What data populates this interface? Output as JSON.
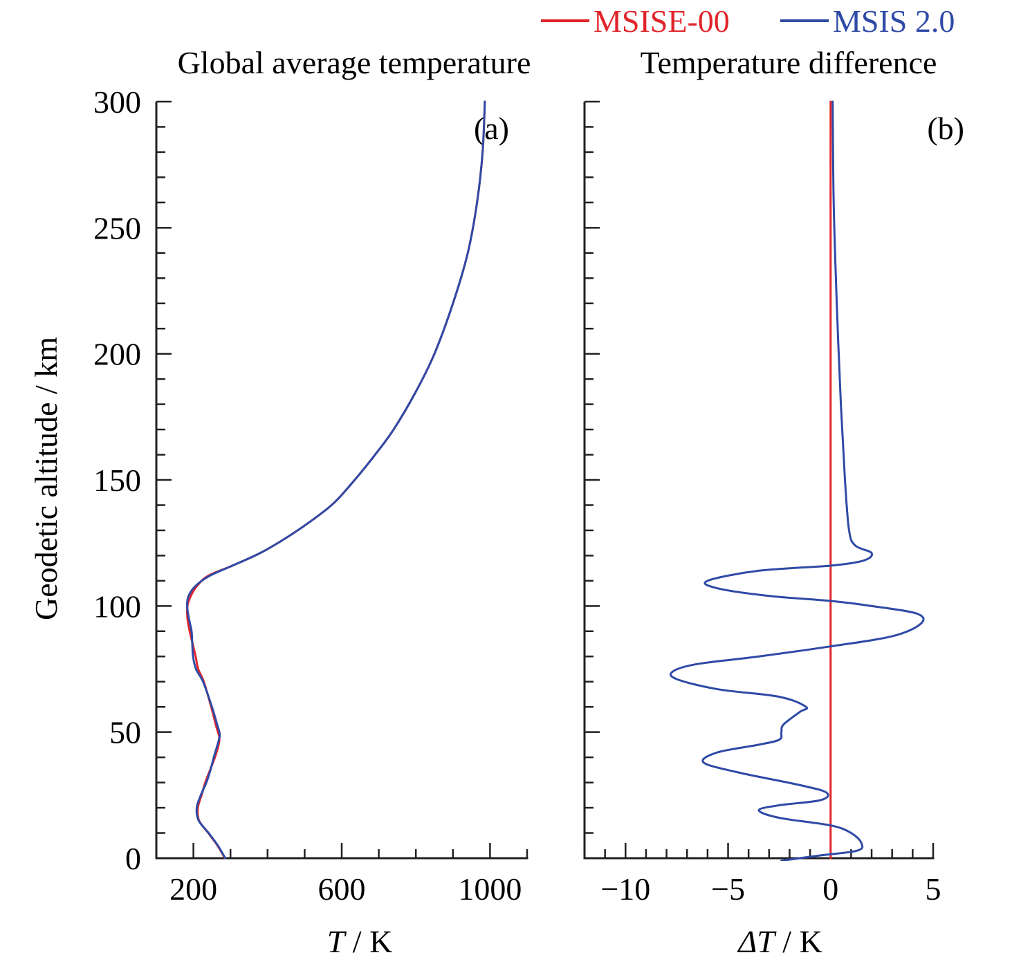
{
  "legend": {
    "placement": "top-right",
    "items": [
      {
        "label": "MSISE-00",
        "color": "#e0252b"
      },
      {
        "label": "MSIS 2.0",
        "color": "#2f4aa6"
      }
    ]
  },
  "ylabel": "Geodetic altitude / km",
  "chart_data": [
    {
      "type": "line",
      "title": "Global average temperature",
      "panel_label": "(a)",
      "xlabel": {
        "var": "T",
        "rest": " / K"
      },
      "ylabel": "Geodetic altitude / km",
      "xlim": [
        100,
        1100
      ],
      "ylim": [
        0,
        300
      ],
      "xticks": [
        200,
        600,
        1000
      ],
      "xtick_labels": [
        "200",
        "600",
        "1000"
      ],
      "yticks": [
        0,
        50,
        100,
        150,
        200,
        250,
        300
      ],
      "ytick_labels": [
        "0",
        "50",
        "100",
        "150",
        "200",
        "250",
        "300"
      ],
      "grid": false,
      "series": [
        {
          "name": "MSISE-00",
          "color": "#e0252b",
          "points": [
            [
              285,
              0
            ],
            [
              265,
              5
            ],
            [
              240,
              10
            ],
            [
              215,
              15
            ],
            [
              212,
              20
            ],
            [
              222,
              25
            ],
            [
              232,
              30
            ],
            [
              245,
              35
            ],
            [
              258,
              40
            ],
            [
              268,
              45
            ],
            [
              270,
              48
            ],
            [
              262,
              52
            ],
            [
              248,
              60
            ],
            [
              228,
              70
            ],
            [
              213,
              75
            ],
            [
              206,
              80
            ],
            [
              198,
              85
            ],
            [
              190,
              90
            ],
            [
              184,
              95
            ],
            [
              184,
              100
            ],
            [
              193,
              104
            ],
            [
              210,
              108
            ],
            [
              240,
              112
            ],
            [
              305,
              116
            ],
            [
              380,
              121
            ],
            [
              450,
              127
            ],
            [
              520,
              134
            ],
            [
              580,
              141
            ],
            [
              635,
              150
            ],
            [
              690,
              160
            ],
            [
              740,
              170
            ],
            [
              800,
              185
            ],
            [
              850,
              200
            ],
            [
              900,
              220
            ],
            [
              940,
              240
            ],
            [
              965,
              260
            ],
            [
              980,
              280
            ],
            [
              986,
              300
            ]
          ]
        },
        {
          "name": "MSIS 2.0",
          "color": "#2f4aa6",
          "points": [
            [
              286,
              0
            ],
            [
              266,
              5
            ],
            [
              241,
              10
            ],
            [
              214,
              15
            ],
            [
              209,
              20
            ],
            [
              220,
              25
            ],
            [
              235,
              30
            ],
            [
              246,
              35
            ],
            [
              255,
              40
            ],
            [
              265,
              45
            ],
            [
              271,
              49
            ],
            [
              264,
              53
            ],
            [
              250,
              60
            ],
            [
              226,
              70
            ],
            [
              207,
              75
            ],
            [
              199,
              80
            ],
            [
              197,
              85
            ],
            [
              195,
              90
            ],
            [
              188,
              95
            ],
            [
              183,
              100
            ],
            [
              187,
              104
            ],
            [
              206,
              108
            ],
            [
              244,
              112
            ],
            [
              305,
              116
            ],
            [
              380,
              121
            ],
            [
              450,
              127
            ],
            [
              520,
              134
            ],
            [
              580,
              141
            ],
            [
              635,
              150
            ],
            [
              690,
              160
            ],
            [
              740,
              170
            ],
            [
              800,
              185
            ],
            [
              850,
              200
            ],
            [
              900,
              220
            ],
            [
              940,
              240
            ],
            [
              965,
              260
            ],
            [
              980,
              280
            ],
            [
              986,
              300
            ]
          ]
        }
      ]
    },
    {
      "type": "line",
      "title": "Temperature difference",
      "panel_label": "(b)",
      "xlabel": {
        "var": "ΔT",
        "rest": " / K"
      },
      "ylabel": "Geodetic altitude / km",
      "xlim": [
        -12,
        5
      ],
      "ylim": [
        0,
        300
      ],
      "xticks": [
        -10,
        -5,
        0,
        5
      ],
      "xtick_labels": [
        "−10",
        "−5",
        "0",
        "5"
      ],
      "yticks": [
        0,
        50,
        100,
        150,
        200,
        250,
        300
      ],
      "ytick_labels": [
        "",
        "",
        "",
        "",
        "",
        "",
        ""
      ],
      "grid": false,
      "series": [
        {
          "name": "MSISE-00",
          "color": "#e0252b",
          "points": [
            [
              0,
              0
            ],
            [
              0,
              300
            ]
          ]
        },
        {
          "name": "MSIS 2.0",
          "color": "#2f4aa6",
          "points": [
            [
              -2.4,
              -1
            ],
            [
              -0.6,
              1
            ],
            [
              1.3,
              3
            ],
            [
              1.5,
              6
            ],
            [
              1.0,
              10
            ],
            [
              0,
              13
            ],
            [
              -2.5,
              16
            ],
            [
              -3.5,
              19
            ],
            [
              -2.5,
              21
            ],
            [
              -0.5,
              23
            ],
            [
              -0.2,
              26
            ],
            [
              -1.5,
              29
            ],
            [
              -4.5,
              34
            ],
            [
              -6.2,
              38
            ],
            [
              -5.5,
              42
            ],
            [
              -3.5,
              45
            ],
            [
              -2.5,
              47
            ],
            [
              -2.4,
              50
            ],
            [
              -2.3,
              53
            ],
            [
              -1.5,
              58
            ],
            [
              -1.2,
              60
            ],
            [
              -2.5,
              64
            ],
            [
              -5.5,
              67
            ],
            [
              -7.5,
              71
            ],
            [
              -7.7,
              74
            ],
            [
              -6.5,
              77
            ],
            [
              -3.5,
              80
            ],
            [
              0,
              84
            ],
            [
              3.0,
              88
            ],
            [
              4.4,
              93
            ],
            [
              4.2,
              97
            ],
            [
              2.0,
              100
            ],
            [
              0,
              102
            ],
            [
              -3.0,
              104
            ],
            [
              -5.5,
              107
            ],
            [
              -6.0,
              110
            ],
            [
              -3.5,
              114
            ],
            [
              0,
              116
            ],
            [
              1.6,
              118
            ],
            [
              2.0,
              121
            ],
            [
              1.2,
              124
            ],
            [
              0.9,
              130
            ],
            [
              0.7,
              150
            ],
            [
              0.5,
              180
            ],
            [
              0.3,
              220
            ],
            [
              0.15,
              260
            ],
            [
              0.1,
              300
            ]
          ]
        }
      ]
    }
  ]
}
